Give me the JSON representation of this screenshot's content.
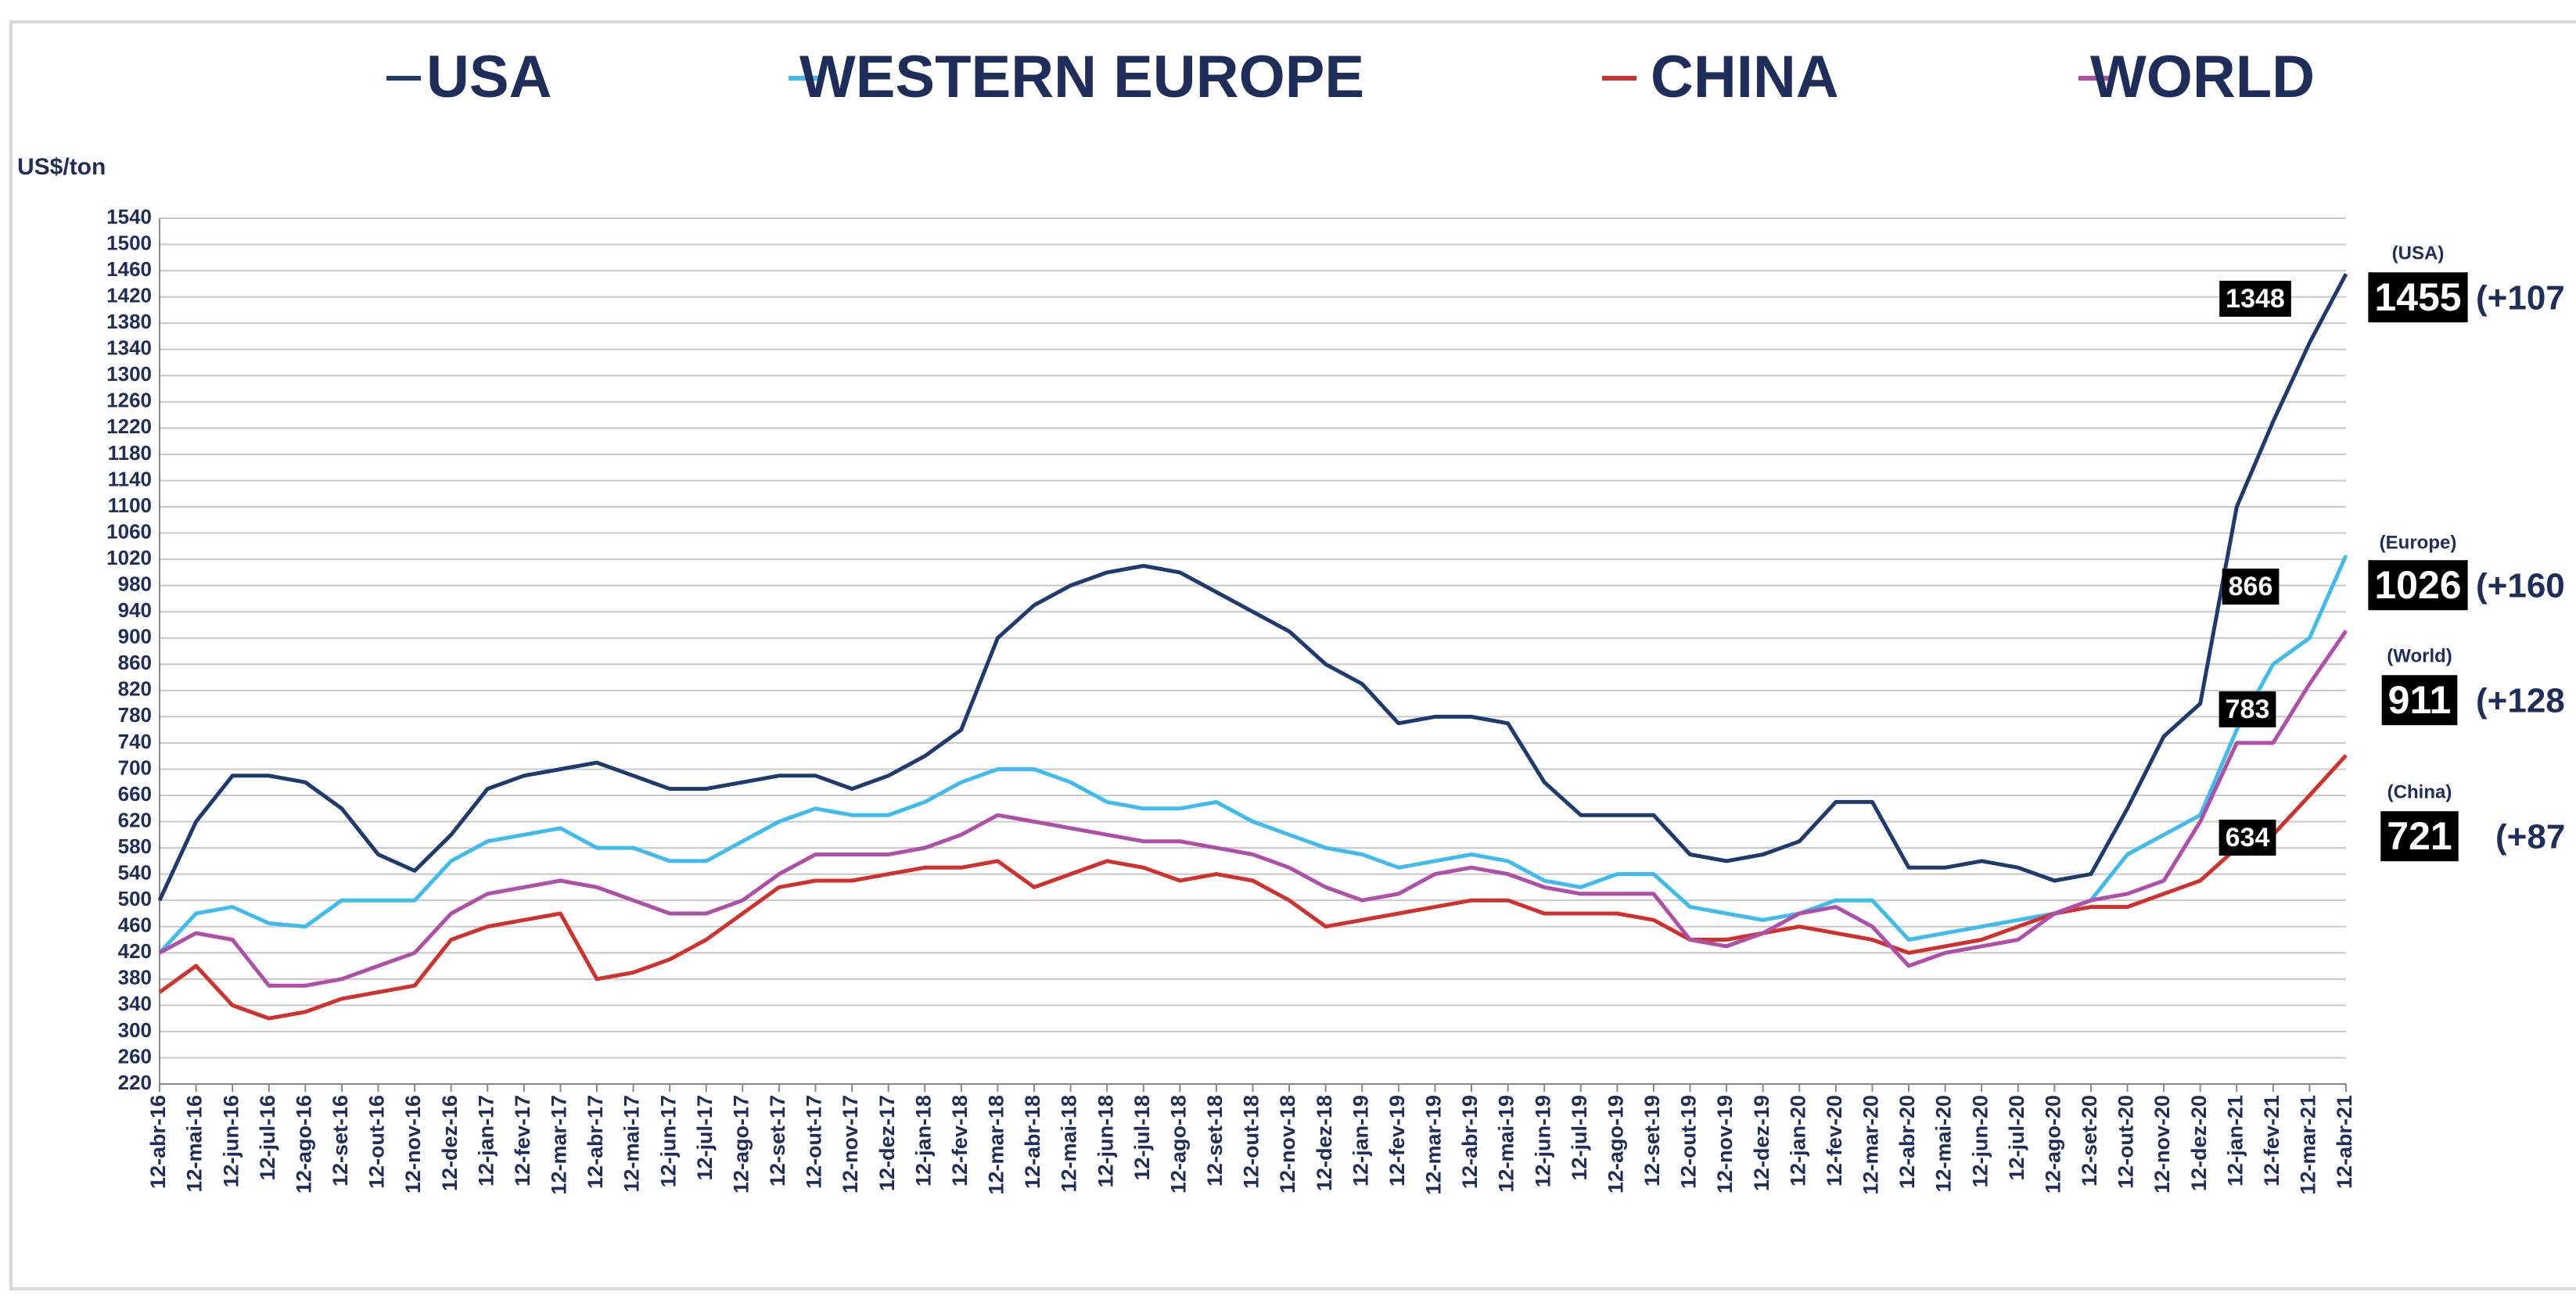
{
  "chart_data": {
    "type": "line",
    "y_label": "US$/ton",
    "categories": [
      "12-abr-16",
      "12-mai-16",
      "12-jun-16",
      "12-jul-16",
      "12-ago-16",
      "12-set-16",
      "12-out-16",
      "12-nov-16",
      "12-dez-16",
      "12-jan-17",
      "12-fev-17",
      "12-mar-17",
      "12-abr-17",
      "12-mai-17",
      "12-jun-17",
      "12-jul-17",
      "12-ago-17",
      "12-set-17",
      "12-out-17",
      "12-nov-17",
      "12-dez-17",
      "12-jan-18",
      "12-fev-18",
      "12-mar-18",
      "12-abr-18",
      "12-mai-18",
      "12-jun-18",
      "12-jul-18",
      "12-ago-18",
      "12-set-18",
      "12-out-18",
      "12-nov-18",
      "12-dez-18",
      "12-jan-19",
      "12-fev-19",
      "12-mar-19",
      "12-abr-19",
      "12-mai-19",
      "12-jun-19",
      "12-jul-19",
      "12-ago-19",
      "12-set-19",
      "12-out-19",
      "12-nov-19",
      "12-dez-19",
      "12-jan-20",
      "12-fev-20",
      "12-mar-20",
      "12-abr-20",
      "12-mai-20",
      "12-jun-20",
      "12-jul-20",
      "12-ago-20",
      "12-set-20",
      "12-out-20",
      "12-nov-20",
      "12-dez-20",
      "12-jan-21",
      "12-fev-21",
      "12-mar-21",
      "12-abr-21"
    ],
    "series": [
      {
        "name": "USA",
        "color": "#1f3a6e",
        "values": [
          500,
          620,
          690,
          690,
          680,
          640,
          570,
          545,
          600,
          670,
          690,
          700,
          710,
          690,
          670,
          670,
          680,
          690,
          690,
          670,
          690,
          720,
          760,
          900,
          950,
          980,
          1000,
          1010,
          1000,
          970,
          940,
          910,
          860,
          830,
          770,
          780,
          780,
          770,
          680,
          630,
          630,
          630,
          570,
          560,
          570,
          590,
          650,
          650,
          550,
          550,
          560,
          550,
          530,
          540,
          640,
          750,
          800,
          1100,
          1230,
          1350,
          1455
        ]
      },
      {
        "name": "WESTERN EUROPE",
        "color": "#3fbbee",
        "values": [
          420,
          480,
          490,
          465,
          460,
          500,
          500,
          500,
          560,
          590,
          600,
          610,
          580,
          580,
          560,
          560,
          590,
          620,
          640,
          630,
          630,
          650,
          680,
          700,
          700,
          680,
          650,
          640,
          640,
          650,
          620,
          600,
          580,
          570,
          550,
          560,
          570,
          560,
          530,
          520,
          540,
          540,
          490,
          480,
          470,
          480,
          500,
          500,
          440,
          450,
          460,
          470,
          480,
          500,
          570,
          600,
          630,
          760,
          860,
          900,
          1026
        ]
      },
      {
        "name": "CHINA",
        "color": "#d0312d",
        "values": [
          360,
          400,
          340,
          320,
          330,
          350,
          360,
          370,
          440,
          460,
          470,
          480,
          380,
          390,
          410,
          440,
          480,
          520,
          530,
          530,
          540,
          550,
          550,
          560,
          520,
          540,
          560,
          550,
          530,
          540,
          530,
          500,
          460,
          470,
          480,
          490,
          500,
          500,
          480,
          480,
          480,
          470,
          440,
          440,
          450,
          460,
          450,
          440,
          420,
          430,
          440,
          460,
          480,
          490,
          490,
          510,
          530,
          580,
          600,
          660,
          721
        ]
      },
      {
        "name": "WORLD",
        "color": "#b04fa8",
        "values": [
          420,
          450,
          440,
          370,
          370,
          380,
          400,
          420,
          480,
          510,
          520,
          530,
          520,
          500,
          480,
          480,
          500,
          540,
          570,
          570,
          570,
          580,
          600,
          630,
          620,
          610,
          600,
          590,
          590,
          580,
          570,
          550,
          520,
          500,
          510,
          540,
          550,
          540,
          520,
          510,
          510,
          510,
          440,
          430,
          450,
          480,
          490,
          460,
          400,
          420,
          430,
          440,
          480,
          500,
          510,
          530,
          620,
          740,
          740,
          830,
          911
        ]
      }
    ],
    "ylim": [
      220,
      1540
    ],
    "yticks": [
      220,
      260,
      300,
      340,
      380,
      420,
      460,
      500,
      540,
      580,
      620,
      660,
      700,
      740,
      780,
      820,
      860,
      900,
      940,
      980,
      1020,
      1060,
      1100,
      1140,
      1180,
      1220,
      1260,
      1300,
      1340,
      1380,
      1420,
      1460,
      1500,
      1540
    ],
    "grid": true,
    "annotations": [
      {
        "text": "1348"
      },
      {
        "text": "866"
      },
      {
        "text": "783"
      },
      {
        "text": "634"
      }
    ],
    "end_labels": [
      {
        "region": "(USA)",
        "value": "1455",
        "change": "(+107"
      },
      {
        "region": "(Europe)",
        "value": "1026",
        "change": "(+160"
      },
      {
        "region": "(World)",
        "value": "911",
        "change": "(+128"
      },
      {
        "region": "(China)",
        "value": "721",
        "change": "(+87"
      }
    ]
  }
}
